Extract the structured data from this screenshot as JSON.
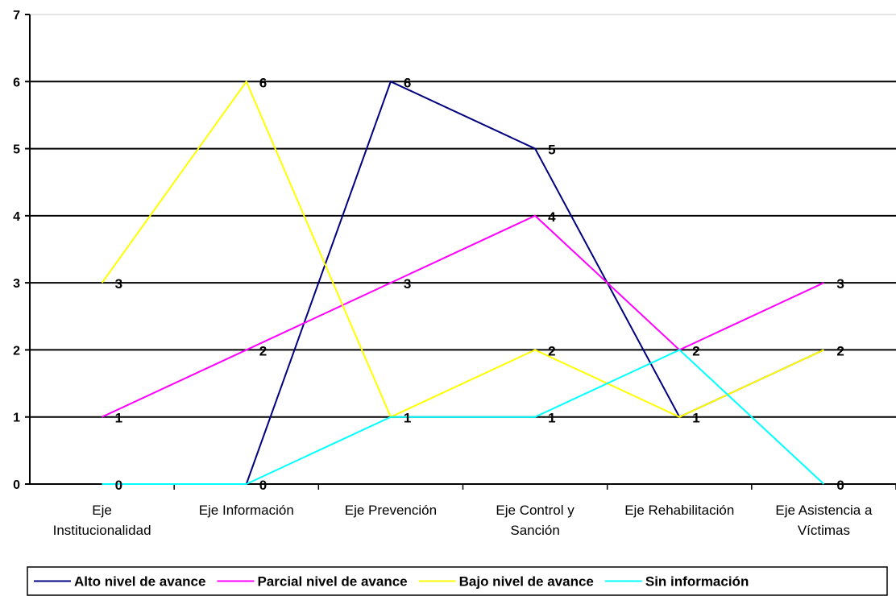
{
  "chart_data": {
    "type": "line",
    "categories": [
      [
        "Eje",
        "Institucionalidad"
      ],
      [
        "Eje Información"
      ],
      [
        "Eje Prevención"
      ],
      [
        "Eje Control y",
        "Sanción"
      ],
      [
        "Eje Rehabilitación"
      ],
      [
        "Eje Asistencia a",
        "Víctimas"
      ]
    ],
    "series": [
      {
        "name": "Alto nivel de avance",
        "color": "#000080",
        "values": [
          0,
          0,
          6,
          5,
          1,
          2
        ]
      },
      {
        "name": "Parcial nivel de avance",
        "color": "#FF00FF",
        "values": [
          1,
          2,
          3,
          4,
          2,
          3
        ]
      },
      {
        "name": "Bajo nivel de avance",
        "color": "#FFFF00",
        "values": [
          3,
          6,
          1,
          2,
          1,
          2
        ]
      },
      {
        "name": "Sin información",
        "color": "#00FFFF",
        "values": [
          0,
          0,
          1,
          1,
          2,
          0
        ]
      }
    ],
    "data_labels": [
      {
        "category": 0,
        "text": "3",
        "value": 3
      },
      {
        "category": 0,
        "text": "1",
        "value": 1
      },
      {
        "category": 0,
        "text": "0",
        "value": 0
      },
      {
        "category": 1,
        "text": "6",
        "value": 6
      },
      {
        "category": 1,
        "text": "2",
        "value": 2
      },
      {
        "category": 1,
        "text": "0",
        "value": 0
      },
      {
        "category": 2,
        "text": "6",
        "value": 6
      },
      {
        "category": 2,
        "text": "3",
        "value": 3
      },
      {
        "category": 2,
        "text": "1",
        "value": 1
      },
      {
        "category": 3,
        "text": "5",
        "value": 5
      },
      {
        "category": 3,
        "text": "4",
        "value": 4
      },
      {
        "category": 3,
        "text": "2",
        "value": 2
      },
      {
        "category": 3,
        "text": "1",
        "value": 1
      },
      {
        "category": 4,
        "text": "2",
        "value": 2
      },
      {
        "category": 4,
        "text": "1",
        "value": 1
      },
      {
        "category": 5,
        "text": "3",
        "value": 3
      },
      {
        "category": 5,
        "text": "2",
        "value": 2
      },
      {
        "category": 5,
        "text": "0",
        "value": 0
      }
    ],
    "y_ticks": [
      "0",
      "1",
      "2",
      "3",
      "4",
      "5",
      "6",
      "7"
    ],
    "ylim": [
      0,
      7
    ],
    "grid": true,
    "legend": "bottom",
    "title": "",
    "xlabel": "",
    "ylabel": ""
  }
}
